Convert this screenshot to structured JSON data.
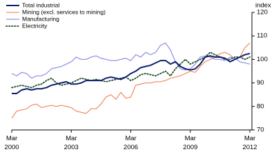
{
  "chart_data": {
    "type": "line",
    "ylabel": "index",
    "categories": [
      "Mar 2000",
      null,
      null,
      null,
      null,
      null,
      null,
      null,
      null,
      null,
      null,
      null,
      "Mar 2003",
      null,
      null,
      null,
      null,
      null,
      null,
      null,
      null,
      null,
      null,
      null,
      "Mar 2006",
      null,
      null,
      null,
      null,
      null,
      null,
      null,
      null,
      null,
      null,
      null,
      "Mar 2009",
      null,
      null,
      null,
      null,
      null,
      null,
      null,
      null,
      null,
      null,
      null,
      "Mar 2012"
    ],
    "ylim": [
      70,
      120
    ],
    "yticks": [
      70,
      80,
      90,
      100,
      110,
      120
    ],
    "legend": "top-left",
    "series": [
      {
        "name": "Total industrial",
        "color": "#0b1f6e",
        "style": "solid",
        "values": [
          85.5,
          85.5,
          87,
          87.5,
          87,
          87.5,
          87.5,
          88,
          89,
          89.5,
          90,
          90.5,
          89.5,
          89.5,
          90,
          91,
          91,
          91,
          91,
          92,
          92.5,
          92,
          91.5,
          92.5,
          94,
          95,
          96.5,
          97,
          97.5,
          98.5,
          99.5,
          99.5,
          98,
          99,
          97,
          96,
          95.5,
          96,
          98,
          101,
          101.5,
          101,
          101,
          100.5,
          99,
          100,
          101,
          102,
          102.5
        ]
      },
      {
        "name": "Mining (excl. services to mining)",
        "color": "#f2916b",
        "style": "solid",
        "values": [
          75,
          78,
          78.5,
          79,
          80.5,
          81,
          79.5,
          80,
          80.5,
          80,
          80.5,
          80,
          79.5,
          78,
          77.5,
          77,
          79,
          79,
          81,
          84,
          85,
          83,
          86,
          83.5,
          84,
          89,
          89.5,
          90,
          90,
          90.5,
          90.5,
          91,
          92,
          92.5,
          93,
          94,
          95,
          94.5,
          97,
          99,
          100,
          101,
          102.5,
          103,
          102,
          100,
          101,
          105,
          107
        ]
      },
      {
        "name": "Manufacturing",
        "color": "#9494ea",
        "style": "solid",
        "values": [
          94,
          93,
          94.5,
          94,
          92,
          93,
          93,
          94,
          96,
          96.5,
          97,
          98,
          99,
          101,
          100,
          100,
          101,
          101.5,
          100.5,
          100,
          99.5,
          99.5,
          100,
          100.5,
          99.5,
          102,
          101,
          103,
          102,
          103,
          106,
          107,
          104,
          99,
          96,
          95.5,
          96,
          98,
          101,
          101.5,
          101,
          100,
          100,
          99.5,
          101,
          100.5,
          99,
          98.5,
          98
        ]
      },
      {
        "name": "Electricity",
        "color": "#1d4a2c",
        "style": "dotted",
        "values": [
          88,
          88.5,
          89,
          88.5,
          88,
          89,
          89.5,
          91,
          92,
          90,
          89,
          89.5,
          90,
          91,
          92,
          91.5,
          91,
          91.5,
          91,
          90.5,
          91,
          91.5,
          92,
          92.5,
          91,
          92,
          93.5,
          94,
          93.5,
          93,
          94,
          95,
          93,
          96,
          98,
          100,
          98,
          99,
          100,
          101,
          103,
          102,
          101,
          100,
          100,
          101,
          101,
          100,
          101
        ]
      }
    ]
  }
}
